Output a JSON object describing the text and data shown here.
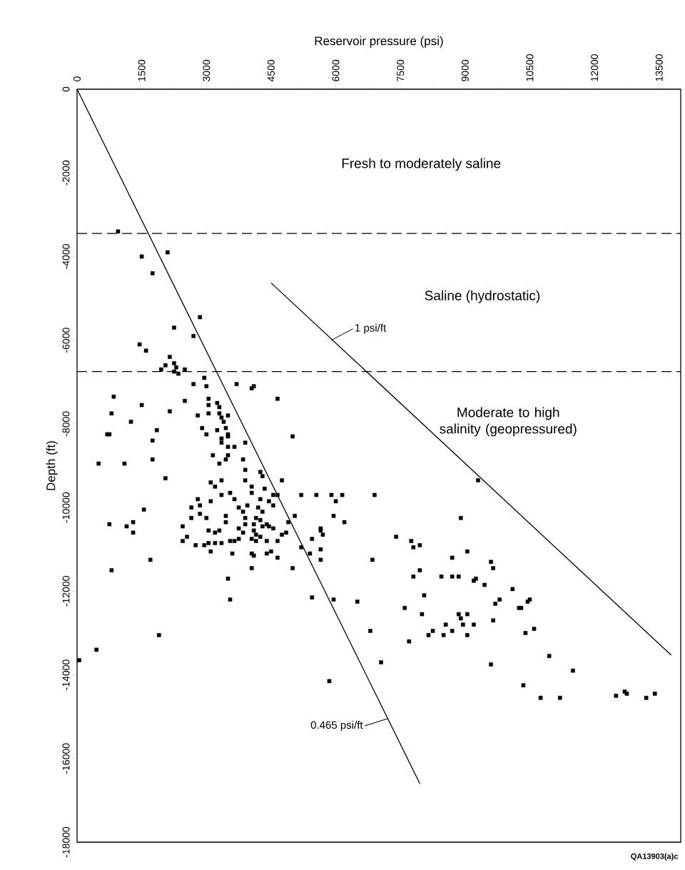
{
  "chart_data": {
    "type": "scatter",
    "xlabel": "Reservoir pressure (psi)",
    "ylabel": "Depth (ft)",
    "xlim": [
      0,
      14000
    ],
    "xticks": [
      0,
      1500,
      3000,
      4500,
      6000,
      7500,
      9000,
      10500,
      12000,
      13500
    ],
    "ylim": [
      -18000,
      0
    ],
    "yticks": [
      -18000,
      -16000,
      -14000,
      -12000,
      -10000,
      -8000,
      -6000,
      -4000,
      -2000,
      0
    ],
    "grid": false,
    "marker": "square",
    "series": [
      {
        "color": "#000000",
        "x": [
          950,
          1500,
          2100,
          1750,
          2850,
          2250,
          2700,
          1450,
          1600,
          2150,
          2050,
          1950,
          2250,
          2300,
          2250,
          2350,
          2500,
          2950,
          2700,
          3000,
          3700,
          4050,
          4100,
          4650,
          850,
          1500,
          800,
          2150,
          2500,
          1250,
          1850,
          700,
          750,
          2800,
          2900,
          3050,
          3050,
          3050,
          3250,
          3300,
          3300,
          3350,
          3400,
          3500,
          3450,
          3250,
          3000,
          3500,
          3350,
          3500,
          3350,
          3500,
          3650,
          3900,
          5000,
          3150,
          3500,
          3450,
          3300,
          3850,
          3900,
          4250,
          4300,
          4750,
          3900,
          3350,
          3100,
          3200,
          4050,
          4050,
          4350,
          3550,
          3350,
          3650,
          4550,
          4650,
          4450,
          4550,
          5200,
          5550,
          5900,
          6150,
          6000,
          6900,
          2800,
          3100,
          2850,
          2650,
          2650,
          2850,
          3000,
          3450,
          3450,
          2450,
          2550,
          2450,
          3050,
          3200,
          3300,
          2750,
          2950,
          3050,
          3200,
          3100,
          3350,
          3550,
          3650,
          3750,
          3600,
          3500,
          3550,
          3750,
          3950,
          3850,
          3900,
          3900,
          3750,
          3850,
          4250,
          4200,
          4300,
          4150,
          4250,
          4400,
          4100,
          4300,
          4450,
          4550,
          4100,
          4150,
          4250,
          4050,
          4150,
          4400,
          4650,
          4050,
          4100,
          4400,
          4500,
          4650,
          4050,
          5000,
          4750,
          4850,
          4900,
          5050,
          5200,
          5400,
          5450,
          5650,
          5650,
          5700,
          5650,
          5650,
          5950,
          6200,
          6850,
          5450,
          5950,
          6500,
          1750,
          1750,
          500,
          1100,
          2050,
          1550,
          750,
          1150,
          1300,
          1300,
          1700,
          800,
          1900,
          450,
          50,
          9300,
          8900,
          7400,
          7750,
          7800,
          7950,
          8700,
          9050,
          9600,
          9650,
          7950,
          7800,
          8450,
          8700,
          8850,
          9200,
          9250,
          9450,
          10100,
          9700,
          9800,
          10250,
          10300,
          10450,
          10500,
          8050,
          7600,
          8000,
          8850,
          8900,
          9050,
          8950,
          9200,
          9650,
          8550,
          8250,
          8150,
          8500,
          8700,
          9050,
          10400,
          10600,
          6800,
          7700,
          7050,
          9600,
          10950,
          11500,
          10350,
          10750,
          11200,
          12500,
          12700,
          12750,
          13200,
          13400,
          5850
        ],
        "values": [
          -3400,
          -4000,
          -3900,
          -4400,
          -5450,
          -5700,
          -5900,
          -6100,
          -6250,
          -6400,
          -6600,
          -6700,
          -6550,
          -6650,
          -6750,
          -6800,
          -6700,
          -6900,
          -7050,
          -7100,
          -7050,
          -7150,
          -7100,
          -7400,
          -7350,
          -7550,
          -7750,
          -7700,
          -7450,
          -7950,
          -8150,
          -8250,
          -8250,
          -7800,
          -8100,
          -7400,
          -7550,
          -7750,
          -7500,
          -7600,
          -7750,
          -7850,
          -7950,
          -7800,
          -8100,
          -8150,
          -8250,
          -8250,
          -8350,
          -8300,
          -8450,
          -8550,
          -8550,
          -8450,
          -8300,
          -8750,
          -8750,
          -8850,
          -8950,
          -8850,
          -9100,
          -9150,
          -9250,
          -9350,
          -9350,
          -9350,
          -9400,
          -9500,
          -9500,
          -9650,
          -9550,
          -9650,
          -9700,
          -9800,
          -9700,
          -9700,
          -9850,
          -9950,
          -9700,
          -9700,
          -9700,
          -9700,
          -9850,
          -9700,
          -9800,
          -9850,
          -9950,
          -10000,
          -10250,
          -10150,
          -10250,
          -10200,
          -10350,
          -10450,
          -10700,
          -10800,
          -10550,
          -10600,
          -10550,
          -10900,
          -10900,
          -10850,
          -10850,
          -11050,
          -10850,
          -10800,
          -10800,
          -10750,
          -11100,
          -11700,
          -12200,
          -10000,
          -9950,
          -10100,
          -10250,
          -10400,
          -10500,
          -10600,
          -9800,
          -10000,
          -10100,
          -10250,
          -10300,
          -10400,
          -10400,
          -10450,
          -10450,
          -10500,
          -10550,
          -10650,
          -10700,
          -10750,
          -10800,
          -10800,
          -10800,
          -11100,
          -11150,
          -11100,
          -11050,
          -11200,
          -11450,
          -11450,
          -10650,
          -10600,
          -10350,
          -10200,
          -10950,
          -11100,
          -10750,
          -10500,
          -10550,
          -10650,
          -11000,
          -11250,
          -10200,
          -10350,
          -11250,
          -12150,
          -12200,
          -12250,
          -8400,
          -8850,
          -8950,
          -8950,
          -9300,
          -10050,
          -10400,
          -10450,
          -10350,
          -10600,
          -11250,
          -11500,
          -13050,
          -13400,
          -13650,
          -9350,
          -10250,
          -10700,
          -10800,
          -10950,
          -10900,
          -11200,
          -11050,
          -11300,
          -11450,
          -11500,
          -11650,
          -11650,
          -11650,
          -11650,
          -11750,
          -11700,
          -11850,
          -11950,
          -12300,
          -12200,
          -12400,
          -12400,
          -12250,
          -12200,
          -12100,
          -12400,
          -12550,
          -12550,
          -12650,
          -12550,
          -12800,
          -12800,
          -12700,
          -12800,
          -12950,
          -13050,
          -13050,
          -12950,
          -13050,
          -13000,
          -12900,
          -12950,
          -13200,
          -13700,
          -13750,
          -13550,
          -13900,
          -14250,
          -14550,
          -14550,
          -14500,
          -14400,
          -14450,
          -14550,
          -14450,
          -14150
        ]
      },
      {
        "type": "line",
        "color": "#000000",
        "marker": "none",
        "line_style": "solid",
        "x": [
          0,
          7950
        ],
        "values": [
          0,
          -16600
        ]
      },
      {
        "type": "line",
        "color": "#000000",
        "marker": "none",
        "line_style": "solid",
        "x": [
          4500,
          13780
        ],
        "values": [
          -4630,
          -13530
        ]
      }
    ],
    "ref_lines": [
      {
        "axis": "y",
        "value": -3450,
        "line_style": "dashed"
      },
      {
        "axis": "y",
        "value": -6750,
        "line_style": "dashed"
      }
    ],
    "annotations": [
      "Fresh to moderately saline",
      "Saline (hydrostatic)",
      "Moderate to high salinity (geopressured)",
      {
        "text": "1 psi/ft",
        "x": 5900,
        "y": -6000
      },
      {
        "text": "0.465 psi/ft",
        "x": 7200,
        "y": -15050
      },
      "QA13903(a)c"
    ]
  }
}
